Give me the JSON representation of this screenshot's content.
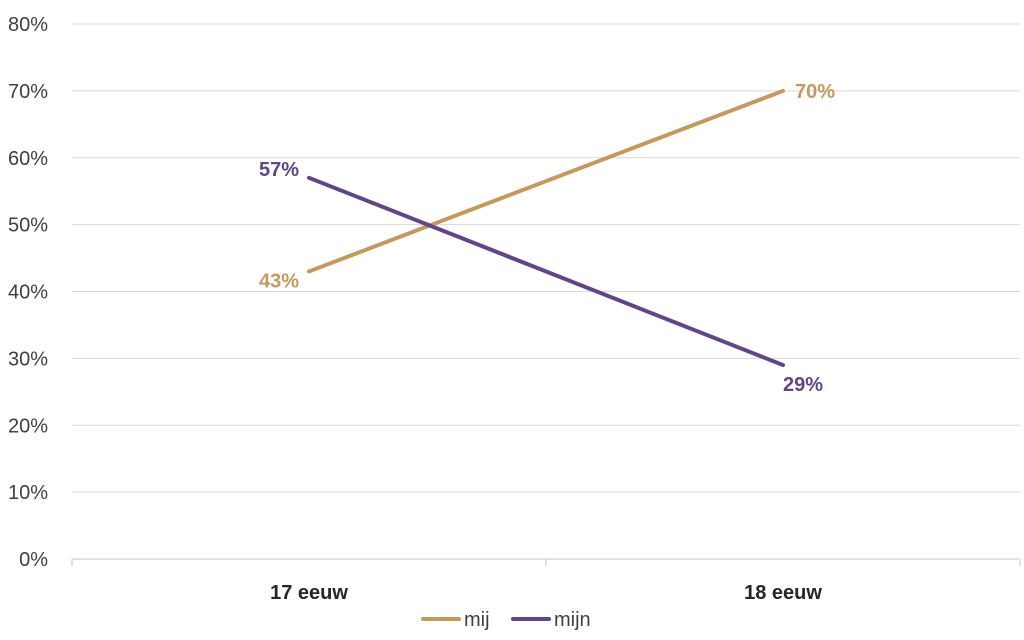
{
  "chart_data": {
    "type": "line",
    "categories": [
      "17 eeuw",
      "18 eeuw"
    ],
    "series": [
      {
        "name": "mij",
        "values": [
          43,
          70
        ],
        "value_labels": [
          "43%",
          "70%"
        ],
        "color": "#c49a5c"
      },
      {
        "name": "mijn",
        "values": [
          57,
          29
        ],
        "value_labels": [
          "57%",
          "29%"
        ],
        "color": "#5f4684"
      }
    ],
    "y_ticks": [
      {
        "value": 0,
        "label": "0%"
      },
      {
        "value": 10,
        "label": "10%"
      },
      {
        "value": 20,
        "label": "20%"
      },
      {
        "value": 30,
        "label": "30%"
      },
      {
        "value": 40,
        "label": "40%"
      },
      {
        "value": 50,
        "label": "50%"
      },
      {
        "value": 60,
        "label": "60%"
      },
      {
        "value": 70,
        "label": "70%"
      },
      {
        "value": 80,
        "label": "80%"
      }
    ],
    "ylim": [
      0,
      80
    ],
    "grid": true,
    "legend": "bottom-center",
    "title": "",
    "xlabel": "",
    "ylabel": ""
  }
}
